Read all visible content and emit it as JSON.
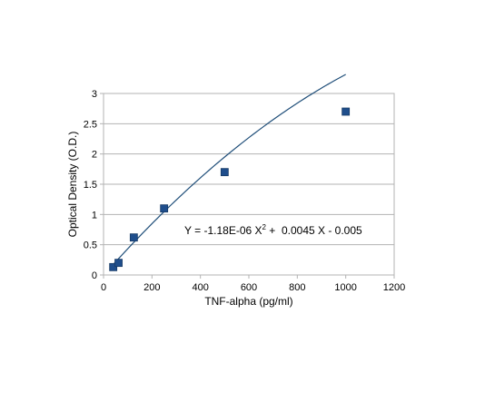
{
  "chart_data": {
    "type": "scatter",
    "title": "",
    "xlabel": "TNF-alpha (pg/ml)",
    "ylabel": "Optical Density (O.D.)",
    "xlim": [
      0,
      1200
    ],
    "ylim": [
      0,
      3
    ],
    "x_ticks": [
      0,
      200,
      400,
      600,
      800,
      1000,
      1200
    ],
    "y_ticks": [
      "0",
      "0.5",
      "1",
      "1.5",
      "2",
      "2.5",
      "3"
    ],
    "grid": "horizontal",
    "legend": "none",
    "series": [
      {
        "points": [
          {
            "x": 40,
            "y": 0.13
          },
          {
            "x": 62,
            "y": 0.2
          },
          {
            "x": 125,
            "y": 0.62
          },
          {
            "x": 250,
            "y": 1.1
          },
          {
            "x": 500,
            "y": 1.7
          },
          {
            "x": 1000,
            "y": 2.7
          }
        ],
        "marker": "square",
        "color": "#1f4e8c"
      }
    ],
    "trendline": {
      "type": "polynomial",
      "a": -1.18e-06,
      "b": 0.0045,
      "c": -0.005,
      "x_range": [
        40,
        1000
      ],
      "color": "#1f4e79"
    },
    "equation": {
      "prefix": "Y = -1.18E-06 X",
      "sup": "2",
      "suffix": " +  0.0045 X - 0.005"
    }
  }
}
